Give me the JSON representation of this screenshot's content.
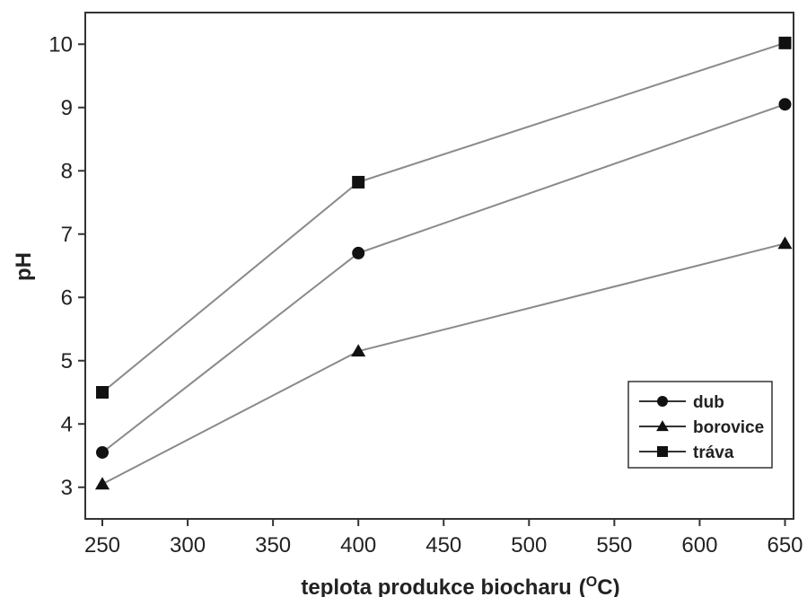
{
  "chart_data": {
    "type": "line",
    "title": "",
    "xlabel": "teplota produkce biocharu",
    "xlabel_unit_base": "(",
    "xlabel_unit_sup": "O",
    "xlabel_unit_tail": "C)",
    "ylabel": "pH",
    "x": [
      250,
      400,
      650
    ],
    "xlim": [
      240,
      655
    ],
    "ylim": [
      2.5,
      10.5
    ],
    "xticks": [
      250,
      300,
      350,
      400,
      450,
      500,
      550,
      600,
      650
    ],
    "yticks": [
      3,
      4,
      5,
      6,
      7,
      8,
      9,
      10
    ],
    "grid": false,
    "legend_position": "lower-right",
    "line_color": "#8a8a8a",
    "marker_color": "#111111",
    "series": [
      {
        "name": "dub",
        "marker": "circle",
        "values": [
          3.55,
          6.7,
          9.05
        ]
      },
      {
        "name": "borovice",
        "marker": "triangle",
        "values": [
          3.05,
          5.15,
          6.85
        ]
      },
      {
        "name": "tráva",
        "marker": "square",
        "values": [
          4.5,
          7.82,
          10.02
        ]
      }
    ]
  }
}
